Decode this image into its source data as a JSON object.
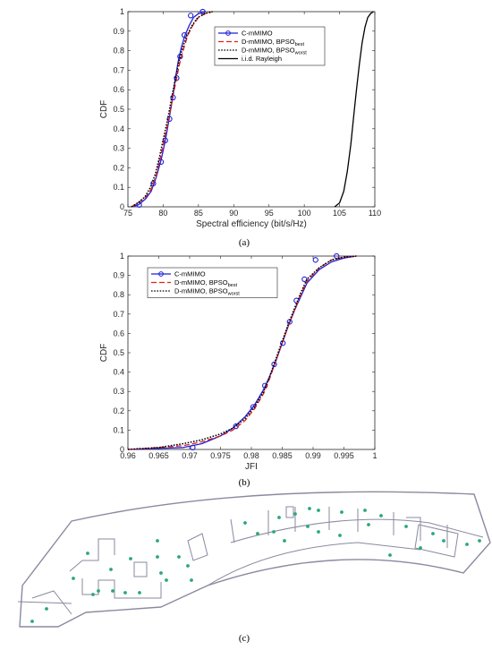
{
  "chart_data": [
    {
      "type": "line",
      "caption": "(a)",
      "xlabel": "Spectral efficiency (bit/s/Hz)",
      "ylabel": "CDF",
      "xlim": [
        75,
        110
      ],
      "ylim": [
        0,
        1
      ],
      "xticks": [
        75,
        80,
        85,
        90,
        95,
        100,
        105,
        110
      ],
      "yticks": [
        0,
        0.1,
        0.2,
        0.3,
        0.4,
        0.5,
        0.6,
        0.7,
        0.8,
        0.9,
        1
      ],
      "legend_position": "top-right",
      "series": [
        {
          "name": "C-mMIMO",
          "legend_sub": "",
          "color": "#1f1fd6",
          "dash": "",
          "marker": "circle",
          "x": [
            75.5,
            76.5,
            77.5,
            78.3,
            79.0,
            79.7,
            80.3,
            80.8,
            81.3,
            81.7,
            82.1,
            82.6,
            83.1,
            83.7,
            84.3,
            85.0,
            86.0
          ],
          "y": [
            0.0,
            0.01,
            0.04,
            0.08,
            0.15,
            0.24,
            0.34,
            0.44,
            0.55,
            0.65,
            0.74,
            0.82,
            0.88,
            0.93,
            0.97,
            0.99,
            1.0
          ],
          "marker_x": [
            76.6,
            78.6,
            79.7,
            80.3,
            80.9,
            81.4,
            81.9,
            82.4,
            83.0,
            83.9,
            85.6
          ],
          "marker_y": [
            0.01,
            0.12,
            0.23,
            0.34,
            0.45,
            0.56,
            0.66,
            0.77,
            0.88,
            0.98,
            1.0
          ]
        },
        {
          "name": "D-mMIMO, BPSO",
          "legend_sub": "best",
          "color": "#e02020",
          "dash": "6,3",
          "marker": "",
          "x": [
            75.5,
            76.5,
            77.5,
            78.3,
            79.0,
            79.6,
            80.2,
            80.8,
            81.3,
            81.8,
            82.3,
            82.9,
            83.5,
            84.2,
            85.0,
            86.0,
            87.0
          ],
          "y": [
            0.0,
            0.02,
            0.05,
            0.09,
            0.16,
            0.25,
            0.35,
            0.45,
            0.55,
            0.64,
            0.73,
            0.81,
            0.88,
            0.93,
            0.97,
            0.99,
            1.0
          ]
        },
        {
          "name": "D-mMIMO, BPSO",
          "legend_sub": "worst",
          "color": "#000000",
          "dash": "1.6,1.6",
          "marker": "",
          "x": [
            75.5,
            76.4,
            77.4,
            78.2,
            78.9,
            79.5,
            80.1,
            80.7,
            81.2,
            81.7,
            82.2,
            82.8,
            83.4,
            84.1,
            84.9,
            85.9,
            87.0
          ],
          "y": [
            0.0,
            0.02,
            0.05,
            0.1,
            0.17,
            0.26,
            0.36,
            0.46,
            0.56,
            0.65,
            0.74,
            0.82,
            0.88,
            0.93,
            0.97,
            0.99,
            1.0
          ]
        },
        {
          "name": "i.i.d. Rayleigh",
          "legend_sub": "",
          "color": "#000000",
          "dash": "",
          "marker": "",
          "x": [
            104.3,
            105.0,
            105.6,
            106.1,
            106.6,
            107.0,
            107.4,
            107.8,
            108.2,
            108.6,
            109.0,
            109.4,
            109.8
          ],
          "y": [
            0.0,
            0.02,
            0.08,
            0.18,
            0.32,
            0.46,
            0.6,
            0.73,
            0.84,
            0.92,
            0.97,
            0.99,
            1.0
          ]
        }
      ]
    },
    {
      "type": "line",
      "caption": "(b)",
      "xlabel": "JFI",
      "ylabel": "CDF",
      "xlim": [
        0.96,
        1
      ],
      "ylim": [
        0,
        1
      ],
      "xticks": [
        0.96,
        0.965,
        0.97,
        0.975,
        0.98,
        0.985,
        0.99,
        0.995,
        1
      ],
      "yticks": [
        0,
        0.1,
        0.2,
        0.3,
        0.4,
        0.5,
        0.6,
        0.7,
        0.8,
        0.9,
        1
      ],
      "legend_position": "top-left",
      "series": [
        {
          "name": "C-mMIMO",
          "legend_sub": "",
          "color": "#1f1fd6",
          "dash": "",
          "marker": "circle",
          "x": [
            0.96,
            0.965,
            0.969,
            0.972,
            0.975,
            0.977,
            0.979,
            0.9805,
            0.982,
            0.983,
            0.984,
            0.985,
            0.986,
            0.987,
            0.988,
            0.989,
            0.991,
            0.993,
            0.995,
            0.997
          ],
          "y": [
            0.0,
            0.005,
            0.01,
            0.03,
            0.07,
            0.11,
            0.17,
            0.23,
            0.31,
            0.38,
            0.46,
            0.55,
            0.64,
            0.72,
            0.79,
            0.86,
            0.93,
            0.97,
            0.99,
            1.0
          ],
          "marker_x": [
            0.9705,
            0.9775,
            0.9803,
            0.9822,
            0.9837,
            0.9851,
            0.9862,
            0.9873,
            0.9886,
            0.9904,
            0.9938
          ],
          "marker_y": [
            0.01,
            0.12,
            0.22,
            0.33,
            0.44,
            0.55,
            0.66,
            0.77,
            0.88,
            0.98,
            1.0
          ]
        },
        {
          "name": "D-mMIMO, BPSO",
          "legend_sub": "best",
          "color": "#e02020",
          "dash": "6,3",
          "marker": "",
          "x": [
            0.96,
            0.965,
            0.969,
            0.972,
            0.975,
            0.977,
            0.979,
            0.9805,
            0.982,
            0.983,
            0.984,
            0.985,
            0.986,
            0.987,
            0.988,
            0.989,
            0.991,
            0.993,
            0.995,
            0.997
          ],
          "y": [
            0.0,
            0.01,
            0.02,
            0.04,
            0.07,
            0.1,
            0.15,
            0.21,
            0.29,
            0.37,
            0.46,
            0.55,
            0.64,
            0.72,
            0.8,
            0.87,
            0.94,
            0.98,
            0.995,
            1.0
          ]
        },
        {
          "name": "D-mMIMO, BPSO",
          "legend_sub": "worst",
          "color": "#000000",
          "dash": "1.6,1.6",
          "marker": "",
          "x": [
            0.96,
            0.965,
            0.969,
            0.972,
            0.975,
            0.977,
            0.979,
            0.9805,
            0.982,
            0.983,
            0.984,
            0.985,
            0.986,
            0.987,
            0.988,
            0.989,
            0.991,
            0.993,
            0.995,
            0.997
          ],
          "y": [
            0.0,
            0.01,
            0.03,
            0.05,
            0.08,
            0.11,
            0.16,
            0.22,
            0.3,
            0.38,
            0.47,
            0.56,
            0.65,
            0.73,
            0.81,
            0.88,
            0.94,
            0.98,
            0.995,
            1.0
          ]
        }
      ]
    }
  ],
  "floorplan": {
    "caption": "(c)",
    "wall_color": "#8a8aa0",
    "dot_color": "#2aa87a"
  }
}
